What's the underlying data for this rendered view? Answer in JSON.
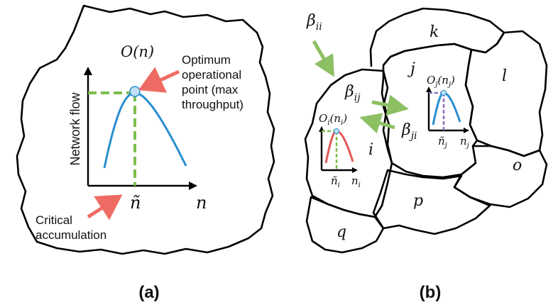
{
  "panel_a": {
    "caption": "(a)",
    "function_label": "O(n)",
    "y_axis_label": "Network flow",
    "x_axis_label": "n",
    "critical_symbol": "ñ",
    "optimum_annotation": [
      "Optimum",
      "operational",
      "point (max",
      "throughput)"
    ],
    "critical_annotation": [
      "Critical",
      "accumulation"
    ]
  },
  "panel_b": {
    "caption": "(b)",
    "regions": [
      "i",
      "j",
      "k",
      "l",
      "o",
      "p",
      "q"
    ],
    "beta_ii": "β",
    "beta_ii_sub": "ii",
    "beta_ij": "β",
    "beta_ij_sub": "ij",
    "beta_ji": "β",
    "beta_ji_sub": "ji",
    "inset_i": {
      "func": "O",
      "sub": "i",
      "arg": "(n",
      "arg_sub": "i",
      "close": ")",
      "crit": "ñ",
      "crit_sub": "i",
      "x": "n",
      "x_sub": "i"
    },
    "inset_j": {
      "func": "O",
      "sub": "j",
      "arg": "(n",
      "arg_sub": "j",
      "close": ")",
      "crit": "ñ",
      "crit_sub": "j",
      "x": "n",
      "x_sub": "j"
    }
  },
  "colors": {
    "curve_blue": "#2a8fd0",
    "curve_red": "#e05a56",
    "dashed_green": "#7dbf4d",
    "arrow_red": "#ee6b63",
    "arrow_green": "#8cc063",
    "dashed_purple": "#8a6dbb",
    "point_fill": "#bfe0f5"
  }
}
